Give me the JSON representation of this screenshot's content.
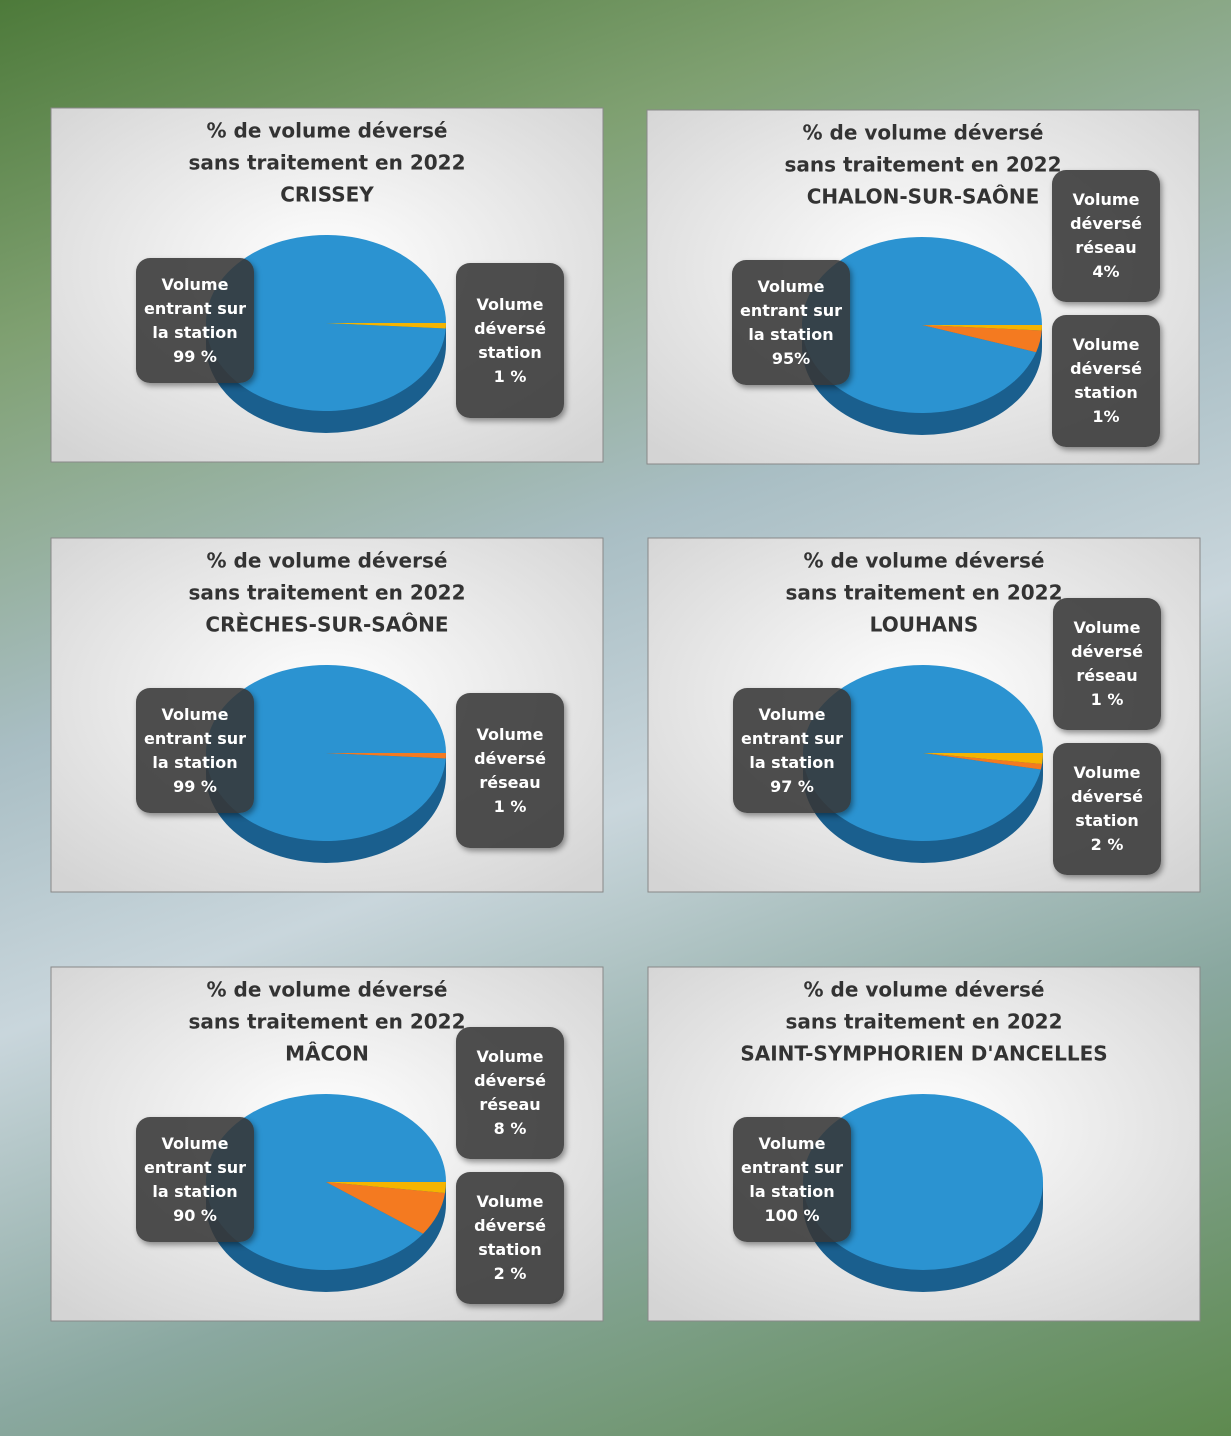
{
  "chart_data": [
    {
      "type": "pie",
      "title": [
        "% de volume déversé",
        "sans traitement en 2022",
        "CRISSEY"
      ],
      "categories": [
        "Volume entrant sur la station",
        "Volume déversé station"
      ],
      "values": [
        99,
        1
      ],
      "value_labels": [
        "99 %",
        "1 %"
      ],
      "colors": [
        "#2b93d1",
        "#f5b400"
      ]
    },
    {
      "type": "pie",
      "title": [
        "% de volume déversé",
        "sans traitement en 2022",
        "CHALON-SUR-SAÔNE"
      ],
      "categories": [
        "Volume entrant sur la station",
        "Volume déversé réseau",
        "Volume déversé station"
      ],
      "values": [
        95,
        4,
        1
      ],
      "value_labels": [
        "95%",
        "4%",
        "1%"
      ],
      "colors": [
        "#2b93d1",
        "#f47a20",
        "#f5b400"
      ]
    },
    {
      "type": "pie",
      "title": [
        "% de volume déversé",
        "sans traitement en 2022",
        "CRÈCHES-SUR-SAÔNE"
      ],
      "categories": [
        "Volume entrant sur la station",
        "Volume déversé réseau"
      ],
      "values": [
        99,
        1
      ],
      "value_labels": [
        "99 %",
        "1 %"
      ],
      "colors": [
        "#2b93d1",
        "#f47a20"
      ]
    },
    {
      "type": "pie",
      "title": [
        "% de volume déversé",
        "sans traitement en 2022",
        "LOUHANS"
      ],
      "categories": [
        "Volume entrant sur la station",
        "Volume déversé réseau",
        "Volume déversé station"
      ],
      "values": [
        97,
        1,
        2
      ],
      "value_labels": [
        "97 %",
        "1 %",
        "2 %"
      ],
      "colors": [
        "#2b93d1",
        "#f47a20",
        "#f5b400"
      ]
    },
    {
      "type": "pie",
      "title": [
        "% de volume déversé",
        "sans traitement en 2022",
        "MÂCON"
      ],
      "categories": [
        "Volume entrant sur la station",
        "Volume déversé réseau",
        "Volume déversé station"
      ],
      "values": [
        90,
        8,
        2
      ],
      "value_labels": [
        "90 %",
        "8 %",
        "2 %"
      ],
      "colors": [
        "#2b93d1",
        "#f47a20",
        "#f5b400"
      ]
    },
    {
      "type": "pie",
      "title": [
        "% de volume déversé",
        "sans traitement en 2022",
        "SAINT-SYMPHORIEN D'ANCELLES"
      ],
      "categories": [
        "Volume entrant sur la station"
      ],
      "values": [
        100
      ],
      "value_labels": [
        "100 %"
      ],
      "colors": [
        "#2b93d1"
      ]
    }
  ]
}
